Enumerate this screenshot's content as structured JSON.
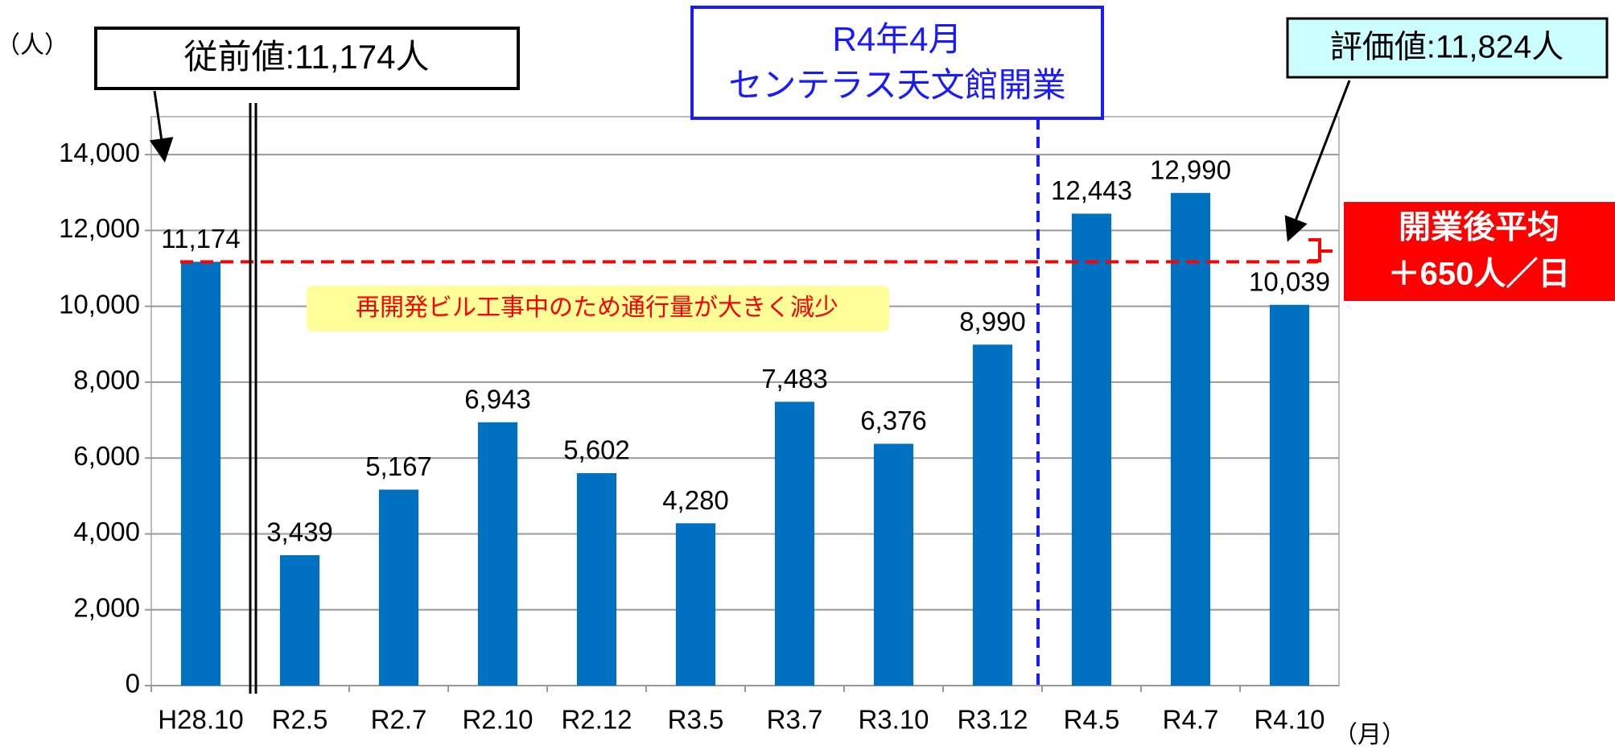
{
  "chart_data": {
    "type": "bar",
    "categories": [
      "H28.10",
      "R2.5",
      "R2.7",
      "R2.10",
      "R2.12",
      "R3.5",
      "R3.7",
      "R3.10",
      "R3.12",
      "R4.5",
      "R4.7",
      "R4.10"
    ],
    "values": [
      11174,
      3439,
      5167,
      6943,
      5602,
      4280,
      7483,
      6376,
      8990,
      12443,
      12990,
      10039
    ],
    "value_labels": [
      "11,174",
      "3,439",
      "5,167",
      "6,943",
      "5,602",
      "4,280",
      "7,483",
      "6,376",
      "8,990",
      "12,443",
      "12,990",
      "10,039"
    ],
    "color": "#0070c0",
    "ylim": [
      0,
      15000
    ],
    "yticks": [
      0,
      {
        "value": 2000,
        "label": "2,000"
      },
      {
        "value": 4000,
        "label": "4,000"
      },
      {
        "value": 6000,
        "label": "6,000"
      },
      {
        "value": 8000,
        "label": "8,000"
      },
      {
        "value": 10000,
        "label": "10,000"
      },
      {
        "value": 12000,
        "label": "12,000"
      },
      {
        "value": 14000,
        "label": "14,000"
      }
    ],
    "grid": true,
    "y_unit": "（人）",
    "x_unit": "（月）",
    "reference_line": 11174,
    "reference_color": "#ff0000",
    "annotations": {
      "baseline_box": "従前値:11,174人",
      "opening_date": "R4年4月",
      "opening_event": "センテラス天文館開業",
      "evaluation_box": "評価値:11,824人",
      "construction_note": "再開発ビル工事中のため通行量が大きく減少",
      "average_title": "開業後平均",
      "average_value": "＋650人／日"
    }
  }
}
